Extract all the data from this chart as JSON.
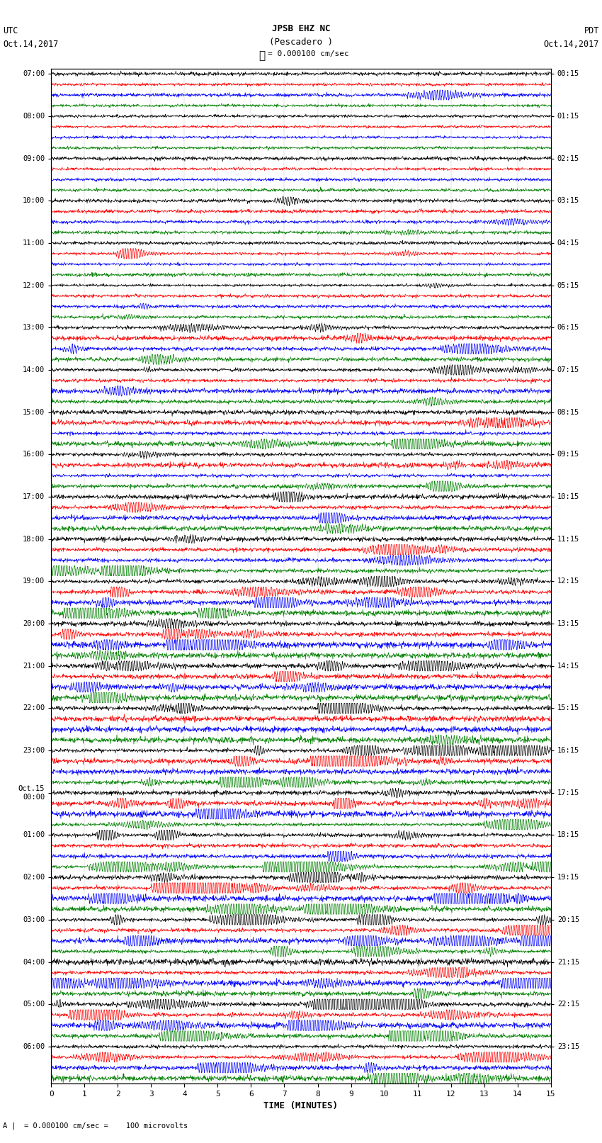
{
  "title_line1": "JPSB EHZ NC",
  "title_line2": "(Pescadero )",
  "scale_label": "= 0.000100 cm/sec",
  "utc_label": "UTC",
  "pdt_label": "PDT",
  "date_left": "Oct.14,2017",
  "date_right": "Oct.14,2017",
  "xlabel": "TIME (MINUTES)",
  "footer": "= 0.000100 cm/sec =    100 microvolts",
  "footer_prefix": "A",
  "xlim": [
    0,
    15
  ],
  "xticks": [
    0,
    1,
    2,
    3,
    4,
    5,
    6,
    7,
    8,
    9,
    10,
    11,
    12,
    13,
    14,
    15
  ],
  "trace_colors": [
    "black",
    "red",
    "blue",
    "green"
  ],
  "background_color": "white",
  "utc_row_labels": [
    "07:00",
    "",
    "",
    "",
    "08:00",
    "",
    "",
    "",
    "09:00",
    "",
    "",
    "",
    "10:00",
    "",
    "",
    "",
    "11:00",
    "",
    "",
    "",
    "12:00",
    "",
    "",
    "",
    "13:00",
    "",
    "",
    "",
    "14:00",
    "",
    "",
    "",
    "15:00",
    "",
    "",
    "",
    "16:00",
    "",
    "",
    "",
    "17:00",
    "",
    "",
    "",
    "18:00",
    "",
    "",
    "",
    "19:00",
    "",
    "",
    "",
    "20:00",
    "",
    "",
    "",
    "21:00",
    "",
    "",
    "",
    "22:00",
    "",
    "",
    "",
    "23:00",
    "",
    "",
    "",
    "Oct.15\n00:00",
    "",
    "",
    "",
    "01:00",
    "",
    "",
    "",
    "02:00",
    "",
    "",
    "",
    "03:00",
    "",
    "",
    "",
    "04:00",
    "",
    "",
    "",
    "05:00",
    "",
    "",
    "",
    "06:00",
    "",
    "",
    ""
  ],
  "pdt_row_labels": [
    "00:15",
    "",
    "",
    "",
    "01:15",
    "",
    "",
    "",
    "02:15",
    "",
    "",
    "",
    "03:15",
    "",
    "",
    "",
    "04:15",
    "",
    "",
    "",
    "05:15",
    "",
    "",
    "",
    "06:15",
    "",
    "",
    "",
    "07:15",
    "",
    "",
    "",
    "08:15",
    "",
    "",
    "",
    "09:15",
    "",
    "",
    "",
    "10:15",
    "",
    "",
    "",
    "11:15",
    "",
    "",
    "",
    "12:15",
    "",
    "",
    "",
    "13:15",
    "",
    "",
    "",
    "14:15",
    "",
    "",
    "",
    "15:15",
    "",
    "",
    "",
    "16:15",
    "",
    "",
    "",
    "17:15",
    "",
    "",
    "",
    "18:15",
    "",
    "",
    "",
    "19:15",
    "",
    "",
    "",
    "20:15",
    "",
    "",
    "",
    "21:15",
    "",
    "",
    "",
    "22:15",
    "",
    "",
    "",
    "23:15",
    "",
    "",
    ""
  ]
}
